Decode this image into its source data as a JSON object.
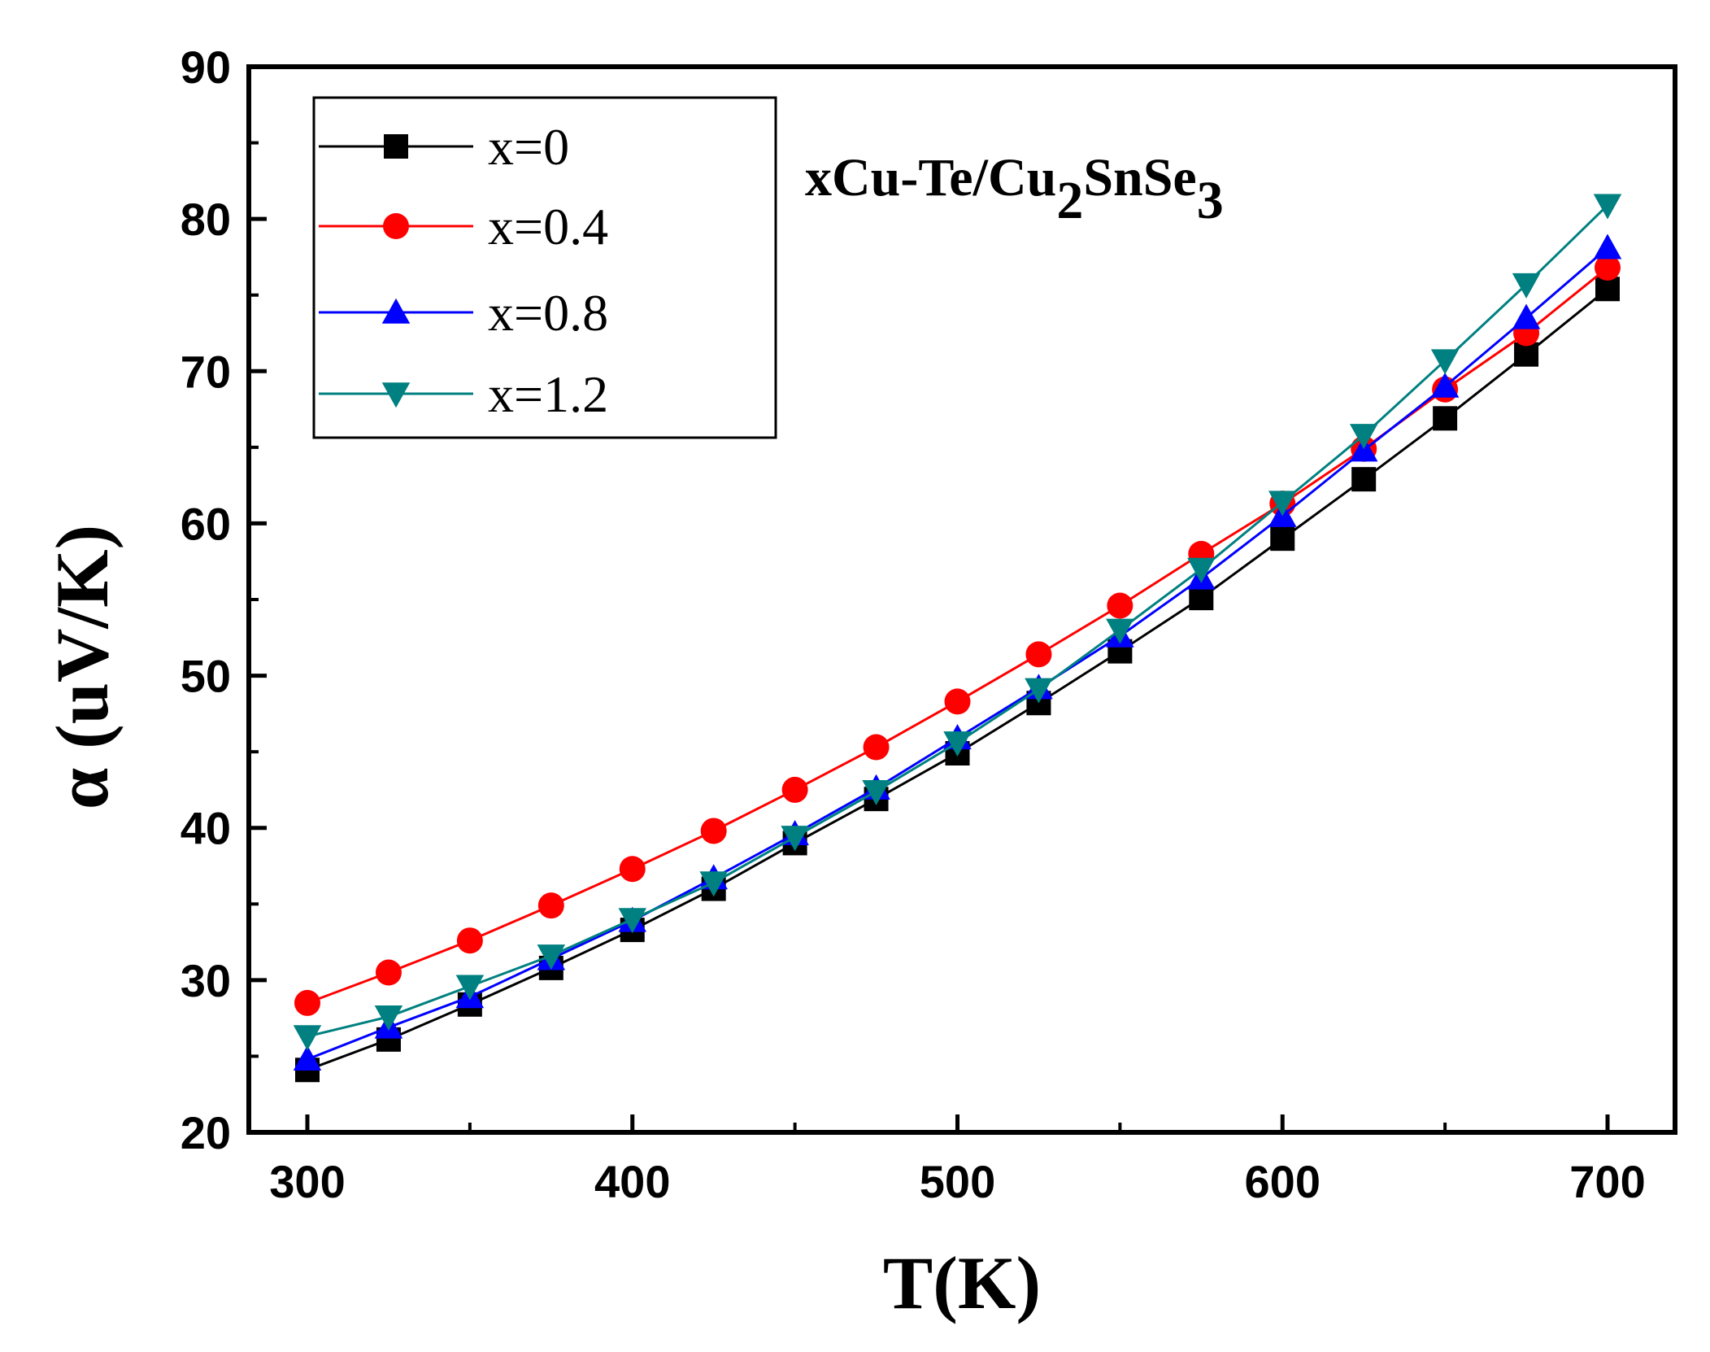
{
  "chart_data": {
    "type": "line",
    "title": "",
    "annotation": {
      "parts": [
        "xCu-Te/Cu",
        "2",
        "SnSe",
        "3"
      ]
    },
    "xlabel": "T(K)",
    "ylabel": "α (uV/K)",
    "xlim": [
      280,
      720
    ],
    "ylim": [
      20,
      90
    ],
    "xticks": [
      300,
      400,
      500,
      600,
      700
    ],
    "yticks": [
      20,
      30,
      40,
      50,
      60,
      70,
      80,
      90
    ],
    "xtick_labels": [
      "300",
      "400",
      "500",
      "600",
      "700"
    ],
    "ytick_labels": [
      "20",
      "30",
      "40",
      "50",
      "60",
      "70",
      "80",
      "90"
    ],
    "x": [
      300,
      325,
      350,
      375,
      400,
      425,
      450,
      475,
      500,
      525,
      550,
      575,
      600,
      625,
      650,
      675,
      700
    ],
    "legend_position": "top-left",
    "series": [
      {
        "name": "x=0",
        "color": "#000000",
        "marker": "square",
        "values": [
          24.1,
          26.1,
          28.4,
          30.8,
          33.3,
          36.0,
          39.0,
          41.9,
          44.9,
          48.2,
          51.6,
          55.1,
          59.0,
          62.9,
          66.9,
          71.1,
          75.4
        ]
      },
      {
        "name": "x=0.4",
        "color": "#ff0000",
        "marker": "circle",
        "values": [
          28.5,
          30.5,
          32.6,
          34.9,
          37.3,
          39.8,
          42.5,
          45.3,
          48.3,
          51.4,
          54.6,
          58.0,
          61.3,
          64.9,
          68.8,
          72.5,
          76.8
        ]
      },
      {
        "name": "x=0.8",
        "color": "#0000ff",
        "marker": "triangle-up",
        "values": [
          24.8,
          26.9,
          28.9,
          31.4,
          33.9,
          36.7,
          39.6,
          42.6,
          45.9,
          49.2,
          52.6,
          56.4,
          60.5,
          64.8,
          69.0,
          73.5,
          78.1
        ]
      },
      {
        "name": "x=1.2",
        "color": "#008080",
        "marker": "triangle-down",
        "values": [
          26.3,
          27.6,
          29.6,
          31.6,
          34.0,
          36.4,
          39.4,
          42.4,
          45.6,
          49.1,
          53.0,
          57.0,
          61.4,
          65.8,
          70.7,
          75.7,
          80.9
        ]
      }
    ]
  }
}
